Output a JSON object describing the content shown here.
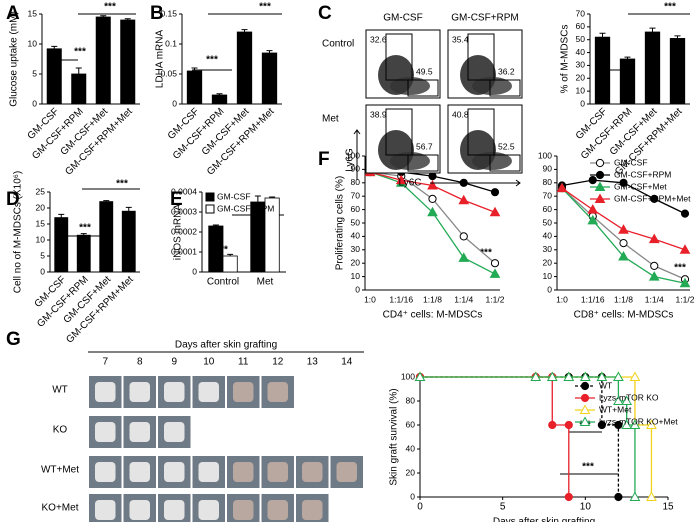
{
  "panel_labels": [
    "A",
    "B",
    "C",
    "D",
    "E",
    "F",
    "G"
  ],
  "flow": {
    "columns": [
      "GM-CSF",
      "GM-CSF+RPM"
    ],
    "rows": [
      "Control",
      "Met"
    ],
    "gates": [
      [
        32.6,
        49.5
      ],
      [
        35.4,
        36.2
      ],
      [
        38.9,
        56.7
      ],
      [
        40.8,
        52.5
      ]
    ],
    "y_label": "Ly6G",
    "x_label": "Ly6C"
  },
  "photos": {
    "title": "Days after skin grafting",
    "days": [
      7,
      8,
      9,
      10,
      11,
      12,
      13,
      14
    ],
    "rows": [
      "WT",
      "KO",
      "WT+Met",
      "KO+Met"
    ]
  },
  "chart_data": [
    {
      "type": "bar",
      "y_label": "Glucose uptake (mM)",
      "categories": [
        "GM-CSF",
        "GM-CSF+RPM",
        "GM-CSF+Met",
        "GM-CSF+RPM+Met"
      ],
      "values": [
        9.2,
        5.0,
        14.5,
        14.0
      ],
      "errors": [
        0.4,
        1.0,
        0.2,
        0.2
      ],
      "color": "#000000",
      "ylim": [
        0,
        15
      ],
      "yticks": [
        0,
        5,
        10,
        15
      ],
      "annotations": [
        "***",
        "***"
      ]
    },
    {
      "type": "bar",
      "y_label": "LDHA mRNA",
      "categories": [
        "GM-CSF",
        "GM-CSF+RPM",
        "GM-CSF+Met",
        "GM-CSF+RPM+Met"
      ],
      "values": [
        0.055,
        0.015,
        0.12,
        0.085
      ],
      "errors": [
        0.005,
        0.002,
        0.004,
        0.004
      ],
      "color": "#000000",
      "ylim": [
        0,
        0.15
      ],
      "yticks": [
        0,
        0.05,
        0.1,
        0.15
      ],
      "annotations": [
        "***",
        "***"
      ]
    },
    {
      "type": "bar",
      "y_label": "% of M-MDSCs",
      "categories": [
        "GM-CSF",
        "GM-CSF+RPM",
        "GM-CSF+Met",
        "GM-CSF+RPM+Met"
      ],
      "values": [
        52,
        35,
        56,
        51
      ],
      "errors": [
        3,
        1.5,
        3,
        2
      ],
      "color": "#000000",
      "ylim": [
        0,
        70
      ],
      "yticks": [
        0,
        10,
        20,
        30,
        40,
        50,
        60,
        70
      ],
      "annotations": [
        "***",
        "***"
      ]
    },
    {
      "type": "bar",
      "y_label": "Cell no of M-MDSCs (X10⁶)",
      "categories": [
        "GM-CSF",
        "GM-CSF+RPM",
        "GM-CSF+Met",
        "GM-CSF+RPM+Met"
      ],
      "values": [
        17,
        11.5,
        22,
        19
      ],
      "errors": [
        1,
        0.5,
        0.3,
        1.2
      ],
      "color": "#000000",
      "ylim": [
        0,
        25
      ],
      "yticks": [
        0,
        5,
        10,
        15,
        20,
        25
      ],
      "annotations": [
        "***",
        "***"
      ]
    },
    {
      "type": "bar",
      "y_label": "iNOS mRNA",
      "categories": [
        "Control",
        "Met"
      ],
      "series": [
        {
          "name": "GM-CSF",
          "color": "#000000",
          "values": [
            0.00023,
            0.00035
          ],
          "errors": [
            5e-06,
            3e-05
          ]
        },
        {
          "name": "GM-CSF+RPM",
          "color": "#ffffff",
          "values": [
            8e-05,
            0.00037
          ],
          "errors": [
            8e-06,
            5e-06
          ]
        }
      ],
      "ylim": [
        0,
        0.0004
      ],
      "yticks": [
        0,
        0.0001,
        0.0002,
        0.0003,
        0.0004
      ],
      "annotations": [
        "**",
        "***"
      ]
    },
    {
      "type": "line",
      "y_label": "Proliferating cells (%)",
      "x_label": "CD4⁺ cells: M-MDSCs",
      "categories": [
        "1:0",
        "1:1/16",
        "1:1/8",
        "1:1/4",
        "1:1/2"
      ],
      "series": [
        {
          "color": "#888888",
          "marker": "circle",
          "marker_fill": "#ffffff",
          "values": [
            88,
            85,
            68,
            40,
            20
          ]
        },
        {
          "color": "#000000",
          "marker": "circle",
          "marker_fill": "#000000",
          "values": [
            88,
            88,
            85,
            80,
            73
          ]
        },
        {
          "color": "#22aa55",
          "marker": "triangle",
          "marker_fill": "#22aa55",
          "values": [
            88,
            80,
            58,
            24,
            12
          ]
        },
        {
          "color": "#e8202a",
          "marker": "triangle",
          "marker_fill": "#e8202a",
          "values": [
            88,
            82,
            78,
            67,
            58
          ]
        }
      ],
      "ylim": [
        0,
        100
      ],
      "yticks": [
        0,
        10,
        20,
        30,
        40,
        50,
        60,
        70,
        80,
        90,
        100
      ],
      "annotations": [
        "***"
      ]
    },
    {
      "type": "line",
      "x_label": "CD8⁺ cells: M-MDSCs",
      "categories": [
        "1:0",
        "1:1/16",
        "1:1/8",
        "1:1/4",
        "1:1/2"
      ],
      "series": [
        {
          "name": "GM-CSF",
          "color": "#888888",
          "marker": "circle",
          "marker_fill": "#ffffff",
          "values": [
            76,
            55,
            35,
            18,
            8
          ]
        },
        {
          "name": "GM-CSF+RPM",
          "color": "#000000",
          "marker": "circle",
          "marker_fill": "#000000",
          "values": [
            78,
            82,
            80,
            68,
            57
          ]
        },
        {
          "name": "GM-CSF+Met",
          "color": "#22aa55",
          "marker": "triangle",
          "marker_fill": "#22aa55",
          "values": [
            76,
            52,
            25,
            10,
            5
          ]
        },
        {
          "name": "GM-CSF+RPM+Met",
          "color": "#e8202a",
          "marker": "triangle",
          "marker_fill": "#e8202a",
          "values": [
            76,
            60,
            45,
            38,
            30
          ]
        }
      ],
      "ylim": [
        0,
        100
      ],
      "yticks": [
        0,
        10,
        20,
        30,
        40,
        50,
        60,
        70,
        80,
        90,
        100
      ],
      "annotations": [
        "***"
      ]
    },
    {
      "type": "line",
      "y_label": "Skin graft survival (%)",
      "x_label": "Days after skin grafting",
      "series": [
        {
          "name": "WT",
          "color": "#000000",
          "dash": true,
          "marker": "circle",
          "marker_fill": "#000000",
          "x": [
            0,
            7,
            8,
            9,
            10,
            11,
            11,
            12,
            12
          ],
          "values": [
            100,
            100,
            100,
            100,
            100,
            100,
            60,
            60,
            0
          ]
        },
        {
          "name": "Lyzs-mTOR KO",
          "color": "#e8202a",
          "marker": "circle",
          "marker_fill": "#e8202a",
          "x": [
            0,
            7,
            8,
            8,
            9,
            9
          ],
          "values": [
            100,
            100,
            100,
            60,
            60,
            0
          ]
        },
        {
          "name": "WT+Met",
          "color": "#f2d21a",
          "marker": "triangle",
          "marker_fill": "#ffffff",
          "x": [
            0,
            7,
            8,
            9,
            10,
            11,
            12,
            13,
            13,
            14,
            14
          ],
          "values": [
            100,
            100,
            100,
            100,
            100,
            100,
            100,
            100,
            60,
            60,
            0
          ]
        },
        {
          "name": "Lyzs-mTOR KO+Met",
          "color": "#22aa55",
          "marker": "triangle",
          "marker_fill": "#ffffff",
          "x": [
            0,
            7,
            8,
            9,
            10,
            11,
            12,
            12,
            12.5,
            12.5,
            13,
            13
          ],
          "values": [
            100,
            100,
            100,
            100,
            100,
            100,
            100,
            80,
            80,
            60,
            60,
            0
          ]
        }
      ],
      "xlim": [
        0,
        15
      ],
      "xticks": [
        0,
        5,
        10,
        15
      ],
      "ylim": [
        0,
        100
      ],
      "yticks": [
        0,
        20,
        40,
        60,
        80,
        100
      ],
      "annotations": [
        "***",
        "***"
      ]
    }
  ]
}
